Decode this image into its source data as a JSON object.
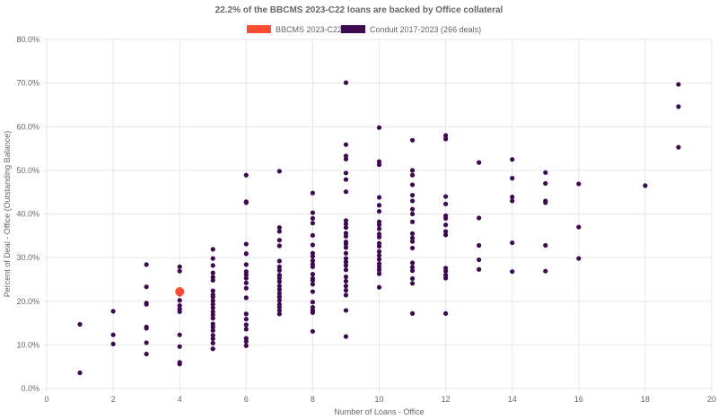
{
  "chart_data": {
    "type": "scatter",
    "title": "22.2% of the BBCMS 2023-C22 loans are backed by Office collateral",
    "xlabel": "Number of Loans - Office",
    "ylabel": "Percent of Deal - Office (Outstanding Balance)",
    "xlim": [
      0,
      20
    ],
    "ylim": [
      0,
      80
    ],
    "x_ticks": [
      0,
      2,
      4,
      6,
      8,
      10,
      12,
      14,
      16,
      18,
      20
    ],
    "y_ticks": [
      0,
      10,
      20,
      30,
      40,
      50,
      60,
      70,
      80
    ],
    "y_tick_labels": [
      "0.0%",
      "10.0%",
      "20.0%",
      "30.0%",
      "40.0%",
      "50.0%",
      "60.0%",
      "70.0%",
      "80.0%"
    ],
    "grid": true,
    "legend_position": "top",
    "series": [
      {
        "name": "BBCMS 2023-C22",
        "color": "#ff4d33",
        "points": [
          [
            4,
            22.2
          ]
        ]
      },
      {
        "name": "Conduit 2017-2023 (266 deals)",
        "color": "#3d0a52",
        "points": [
          [
            1,
            14.7
          ],
          [
            1,
            3.6
          ],
          [
            2,
            17.7
          ],
          [
            2,
            12.3
          ],
          [
            2,
            10.2
          ],
          [
            3,
            28.4
          ],
          [
            3,
            23.3
          ],
          [
            3,
            19.6
          ],
          [
            3,
            19.3
          ],
          [
            3,
            14.1
          ],
          [
            3,
            13.8
          ],
          [
            3,
            10.5
          ],
          [
            3,
            7.9
          ],
          [
            4,
            27.9
          ],
          [
            4,
            26.9
          ],
          [
            4,
            21.6
          ],
          [
            4,
            20.2
          ],
          [
            4,
            19.0
          ],
          [
            4,
            18.2
          ],
          [
            4,
            17.6
          ],
          [
            4,
            12.3
          ],
          [
            4,
            9.6
          ],
          [
            4,
            6.0
          ],
          [
            4,
            5.6
          ],
          [
            5,
            31.9
          ],
          [
            5,
            29.8
          ],
          [
            5,
            28.2
          ],
          [
            5,
            26.5
          ],
          [
            5,
            25.5
          ],
          [
            5,
            24.8
          ],
          [
            5,
            22.4
          ],
          [
            5,
            21.5
          ],
          [
            5,
            21.0
          ],
          [
            5,
            20.1
          ],
          [
            5,
            19.3
          ],
          [
            5,
            18.5
          ],
          [
            5,
            17.6
          ],
          [
            5,
            16.9
          ],
          [
            5,
            16.1
          ],
          [
            5,
            14.8
          ],
          [
            5,
            14.1
          ],
          [
            5,
            13.3
          ],
          [
            5,
            12.2
          ],
          [
            5,
            11.4
          ],
          [
            5,
            10.4
          ],
          [
            5,
            9.1
          ],
          [
            6,
            48.9
          ],
          [
            6,
            42.8
          ],
          [
            6,
            42.6
          ],
          [
            6,
            33.1
          ],
          [
            6,
            30.9
          ],
          [
            6,
            28.4
          ],
          [
            6,
            26.8
          ],
          [
            6,
            26.1
          ],
          [
            6,
            25.3
          ],
          [
            6,
            24.2
          ],
          [
            6,
            23.0
          ],
          [
            6,
            20.8
          ],
          [
            6,
            17.1
          ],
          [
            6,
            15.9
          ],
          [
            6,
            14.6
          ],
          [
            6,
            13.6
          ],
          [
            6,
            11.5
          ],
          [
            6,
            10.8
          ],
          [
            6,
            9.8
          ],
          [
            7,
            49.8
          ],
          [
            7,
            36.9
          ],
          [
            7,
            36.0
          ],
          [
            7,
            34.0
          ],
          [
            7,
            32.7
          ],
          [
            7,
            29.2
          ],
          [
            7,
            27.9
          ],
          [
            7,
            27.1
          ],
          [
            7,
            26.0
          ],
          [
            7,
            25.3
          ],
          [
            7,
            24.5
          ],
          [
            7,
            23.5
          ],
          [
            7,
            22.7
          ],
          [
            7,
            21.8
          ],
          [
            7,
            21.0
          ],
          [
            7,
            20.2
          ],
          [
            7,
            19.3
          ],
          [
            7,
            18.7
          ],
          [
            7,
            17.9
          ],
          [
            7,
            17.1
          ],
          [
            8,
            44.8
          ],
          [
            8,
            40.3
          ],
          [
            8,
            39.0
          ],
          [
            8,
            37.9
          ],
          [
            8,
            35.1
          ],
          [
            8,
            32.9
          ],
          [
            8,
            31.0
          ],
          [
            8,
            30.3
          ],
          [
            8,
            29.3
          ],
          [
            8,
            28.5
          ],
          [
            8,
            27.9
          ],
          [
            8,
            26.2
          ],
          [
            8,
            25.2
          ],
          [
            8,
            24.8
          ],
          [
            8,
            23.9
          ],
          [
            8,
            22.2
          ],
          [
            8,
            19.8
          ],
          [
            8,
            18.6
          ],
          [
            8,
            17.9
          ],
          [
            8,
            17.4
          ],
          [
            8,
            13.1
          ],
          [
            9,
            70.1
          ],
          [
            9,
            55.9
          ],
          [
            9,
            53.3
          ],
          [
            9,
            52.6
          ],
          [
            9,
            49.4
          ],
          [
            9,
            47.9
          ],
          [
            9,
            45.1
          ],
          [
            9,
            38.5
          ],
          [
            9,
            37.7
          ],
          [
            9,
            36.9
          ],
          [
            9,
            35.6
          ],
          [
            9,
            34.9
          ],
          [
            9,
            33.6
          ],
          [
            9,
            33.1
          ],
          [
            9,
            32.3
          ],
          [
            9,
            31.0
          ],
          [
            9,
            29.8
          ],
          [
            9,
            29.0
          ],
          [
            9,
            28.2
          ],
          [
            9,
            27.2
          ],
          [
            9,
            25.6
          ],
          [
            9,
            24.6
          ],
          [
            9,
            23.5
          ],
          [
            9,
            22.5
          ],
          [
            9,
            21.4
          ],
          [
            9,
            17.9
          ],
          [
            9,
            11.9
          ],
          [
            10,
            59.8
          ],
          [
            10,
            52.0
          ],
          [
            10,
            51.3
          ],
          [
            10,
            43.8
          ],
          [
            10,
            42.0
          ],
          [
            10,
            40.6
          ],
          [
            10,
            38.2
          ],
          [
            10,
            37.5
          ],
          [
            10,
            36.6
          ],
          [
            10,
            35.4
          ],
          [
            10,
            34.7
          ],
          [
            10,
            33.3
          ],
          [
            10,
            32.6
          ],
          [
            10,
            31.4
          ],
          [
            10,
            30.5
          ],
          [
            10,
            29.6
          ],
          [
            10,
            28.6
          ],
          [
            10,
            27.9
          ],
          [
            10,
            27.2
          ],
          [
            10,
            26.3
          ],
          [
            10,
            23.2
          ],
          [
            11,
            56.9
          ],
          [
            11,
            50.0
          ],
          [
            11,
            48.9
          ],
          [
            11,
            46.7
          ],
          [
            11,
            44.3
          ],
          [
            11,
            43.0
          ],
          [
            11,
            41.1
          ],
          [
            11,
            40.0
          ],
          [
            11,
            38.2
          ],
          [
            11,
            35.5
          ],
          [
            11,
            34.5
          ],
          [
            11,
            33.7
          ],
          [
            11,
            32.2
          ],
          [
            11,
            28.8
          ],
          [
            11,
            27.8
          ],
          [
            11,
            27.0
          ],
          [
            11,
            25.2
          ],
          [
            11,
            24.1
          ],
          [
            11,
            17.2
          ],
          [
            12,
            58.0
          ],
          [
            12,
            57.2
          ],
          [
            12,
            44.0
          ],
          [
            12,
            42.3
          ],
          [
            12,
            39.6
          ],
          [
            12,
            39.0
          ],
          [
            12,
            37.5
          ],
          [
            12,
            36.0
          ],
          [
            12,
            35.2
          ],
          [
            12,
            27.6
          ],
          [
            12,
            26.9
          ],
          [
            12,
            26.0
          ],
          [
            12,
            25.3
          ],
          [
            12,
            17.2
          ],
          [
            13,
            51.8
          ],
          [
            13,
            39.1
          ],
          [
            13,
            32.8
          ],
          [
            13,
            29.5
          ],
          [
            13,
            27.3
          ],
          [
            14,
            52.5
          ],
          [
            14,
            48.2
          ],
          [
            14,
            43.9
          ],
          [
            14,
            43.0
          ],
          [
            14,
            33.4
          ],
          [
            14,
            26.8
          ],
          [
            15,
            49.5
          ],
          [
            15,
            47.0
          ],
          [
            15,
            43.0
          ],
          [
            15,
            42.6
          ],
          [
            15,
            32.8
          ],
          [
            15,
            26.9
          ],
          [
            16,
            46.9
          ],
          [
            16,
            37.0
          ],
          [
            16,
            29.8
          ],
          [
            18,
            46.5
          ],
          [
            19,
            69.7
          ],
          [
            19,
            64.6
          ],
          [
            19,
            55.3
          ]
        ]
      }
    ]
  }
}
